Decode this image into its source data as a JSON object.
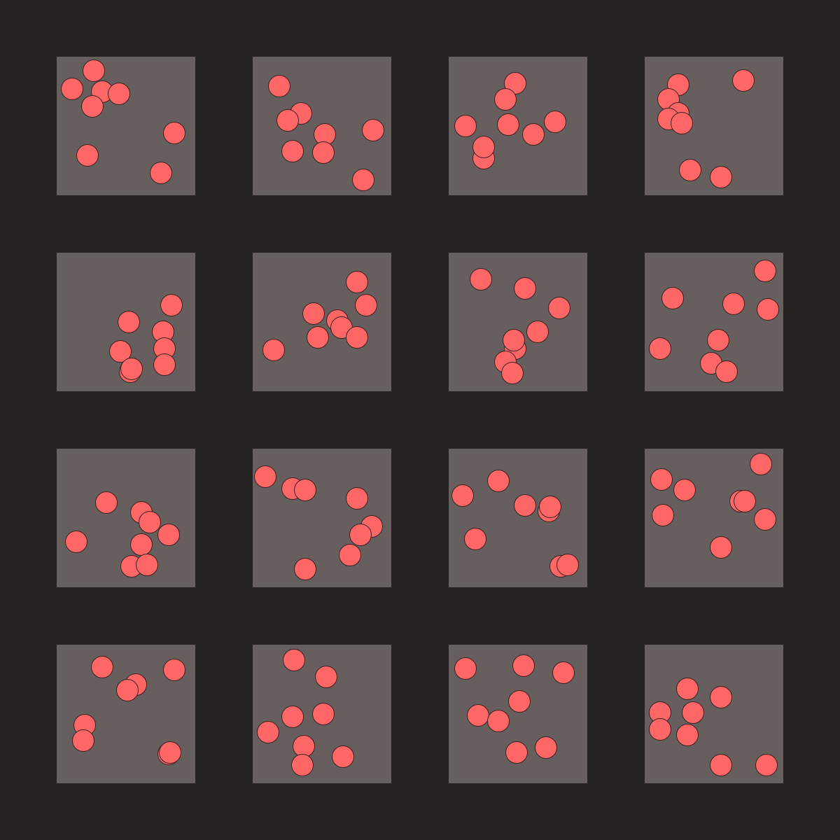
{
  "colors": {
    "background": "#232221",
    "panel": "#675e5e",
    "dot_fill": "#ff6767",
    "dot_outline": "#3a2222"
  },
  "panels": [
    {
      "dots": [
        [
          0.11,
          0.23
        ],
        [
          0.27,
          0.1
        ],
        [
          0.33,
          0.25
        ],
        [
          0.45,
          0.27
        ],
        [
          0.26,
          0.36
        ],
        [
          0.85,
          0.55
        ],
        [
          0.22,
          0.71
        ],
        [
          0.75,
          0.84
        ]
      ]
    },
    {
      "dots": [
        [
          0.19,
          0.21
        ],
        [
          0.35,
          0.41
        ],
        [
          0.25,
          0.46
        ],
        [
          0.52,
          0.56
        ],
        [
          0.29,
          0.68
        ],
        [
          0.51,
          0.69
        ],
        [
          0.87,
          0.53
        ],
        [
          0.8,
          0.89
        ]
      ]
    },
    {
      "dots": [
        [
          0.48,
          0.19
        ],
        [
          0.41,
          0.31
        ],
        [
          0.12,
          0.5
        ],
        [
          0.43,
          0.49
        ],
        [
          0.61,
          0.56
        ],
        [
          0.77,
          0.47
        ],
        [
          0.25,
          0.73
        ],
        [
          0.25,
          0.65
        ]
      ]
    },
    {
      "dots": [
        [
          0.24,
          0.2
        ],
        [
          0.17,
          0.31
        ],
        [
          0.24,
          0.41
        ],
        [
          0.17,
          0.45
        ],
        [
          0.27,
          0.48
        ],
        [
          0.71,
          0.17
        ],
        [
          0.33,
          0.82
        ],
        [
          0.55,
          0.87
        ]
      ]
    },
    {
      "dots": [
        [
          0.83,
          0.38
        ],
        [
          0.52,
          0.5
        ],
        [
          0.77,
          0.57
        ],
        [
          0.78,
          0.69
        ],
        [
          0.46,
          0.71
        ],
        [
          0.78,
          0.81
        ],
        [
          0.53,
          0.86
        ],
        [
          0.54,
          0.84
        ]
      ]
    },
    {
      "dots": [
        [
          0.75,
          0.21
        ],
        [
          0.82,
          0.38
        ],
        [
          0.44,
          0.44
        ],
        [
          0.61,
          0.49
        ],
        [
          0.64,
          0.54
        ],
        [
          0.47,
          0.61
        ],
        [
          0.75,
          0.61
        ],
        [
          0.15,
          0.7
        ]
      ]
    },
    {
      "dots": [
        [
          0.23,
          0.19
        ],
        [
          0.55,
          0.26
        ],
        [
          0.8,
          0.4
        ],
        [
          0.64,
          0.57
        ],
        [
          0.48,
          0.69
        ],
        [
          0.47,
          0.63
        ],
        [
          0.41,
          0.79
        ],
        [
          0.46,
          0.87
        ]
      ]
    },
    {
      "dots": [
        [
          0.87,
          0.13
        ],
        [
          0.2,
          0.33
        ],
        [
          0.64,
          0.37
        ],
        [
          0.89,
          0.41
        ],
        [
          0.53,
          0.63
        ],
        [
          0.11,
          0.69
        ],
        [
          0.48,
          0.8
        ],
        [
          0.59,
          0.86
        ]
      ]
    },
    {
      "dots": [
        [
          0.36,
          0.39
        ],
        [
          0.61,
          0.46
        ],
        [
          0.67,
          0.53
        ],
        [
          0.81,
          0.62
        ],
        [
          0.61,
          0.69
        ],
        [
          0.14,
          0.67
        ],
        [
          0.54,
          0.85
        ],
        [
          0.65,
          0.84
        ]
      ]
    },
    {
      "dots": [
        [
          0.09,
          0.2
        ],
        [
          0.29,
          0.29
        ],
        [
          0.38,
          0.3
        ],
        [
          0.75,
          0.36
        ],
        [
          0.86,
          0.56
        ],
        [
          0.78,
          0.62
        ],
        [
          0.7,
          0.77
        ],
        [
          0.38,
          0.87
        ]
      ]
    },
    {
      "dots": [
        [
          0.36,
          0.23
        ],
        [
          0.1,
          0.34
        ],
        [
          0.55,
          0.41
        ],
        [
          0.72,
          0.45
        ],
        [
          0.73,
          0.42
        ],
        [
          0.19,
          0.65
        ],
        [
          0.81,
          0.85
        ],
        [
          0.86,
          0.84
        ]
      ]
    },
    {
      "dots": [
        [
          0.84,
          0.11
        ],
        [
          0.12,
          0.22
        ],
        [
          0.29,
          0.3
        ],
        [
          0.69,
          0.38
        ],
        [
          0.72,
          0.38
        ],
        [
          0.13,
          0.48
        ],
        [
          0.87,
          0.51
        ],
        [
          0.55,
          0.71
        ]
      ]
    },
    {
      "dots": [
        [
          0.33,
          0.16
        ],
        [
          0.85,
          0.18
        ],
        [
          0.57,
          0.29
        ],
        [
          0.51,
          0.33
        ],
        [
          0.2,
          0.58
        ],
        [
          0.19,
          0.69
        ],
        [
          0.81,
          0.79
        ],
        [
          0.82,
          0.78
        ]
      ]
    },
    {
      "dots": [
        [
          0.3,
          0.11
        ],
        [
          0.53,
          0.23
        ],
        [
          0.29,
          0.52
        ],
        [
          0.51,
          0.5
        ],
        [
          0.11,
          0.63
        ],
        [
          0.37,
          0.73
        ],
        [
          0.65,
          0.81
        ],
        [
          0.36,
          0.87
        ]
      ]
    },
    {
      "dots": [
        [
          0.12,
          0.17
        ],
        [
          0.54,
          0.15
        ],
        [
          0.83,
          0.2
        ],
        [
          0.51,
          0.41
        ],
        [
          0.21,
          0.51
        ],
        [
          0.36,
          0.55
        ],
        [
          0.49,
          0.78
        ],
        [
          0.7,
          0.74
        ]
      ]
    },
    {
      "dots": [
        [
          0.31,
          0.32
        ],
        [
          0.55,
          0.38
        ],
        [
          0.11,
          0.49
        ],
        [
          0.35,
          0.49
        ],
        [
          0.11,
          0.61
        ],
        [
          0.31,
          0.65
        ],
        [
          0.55,
          0.87
        ],
        [
          0.88,
          0.87
        ]
      ]
    }
  ]
}
